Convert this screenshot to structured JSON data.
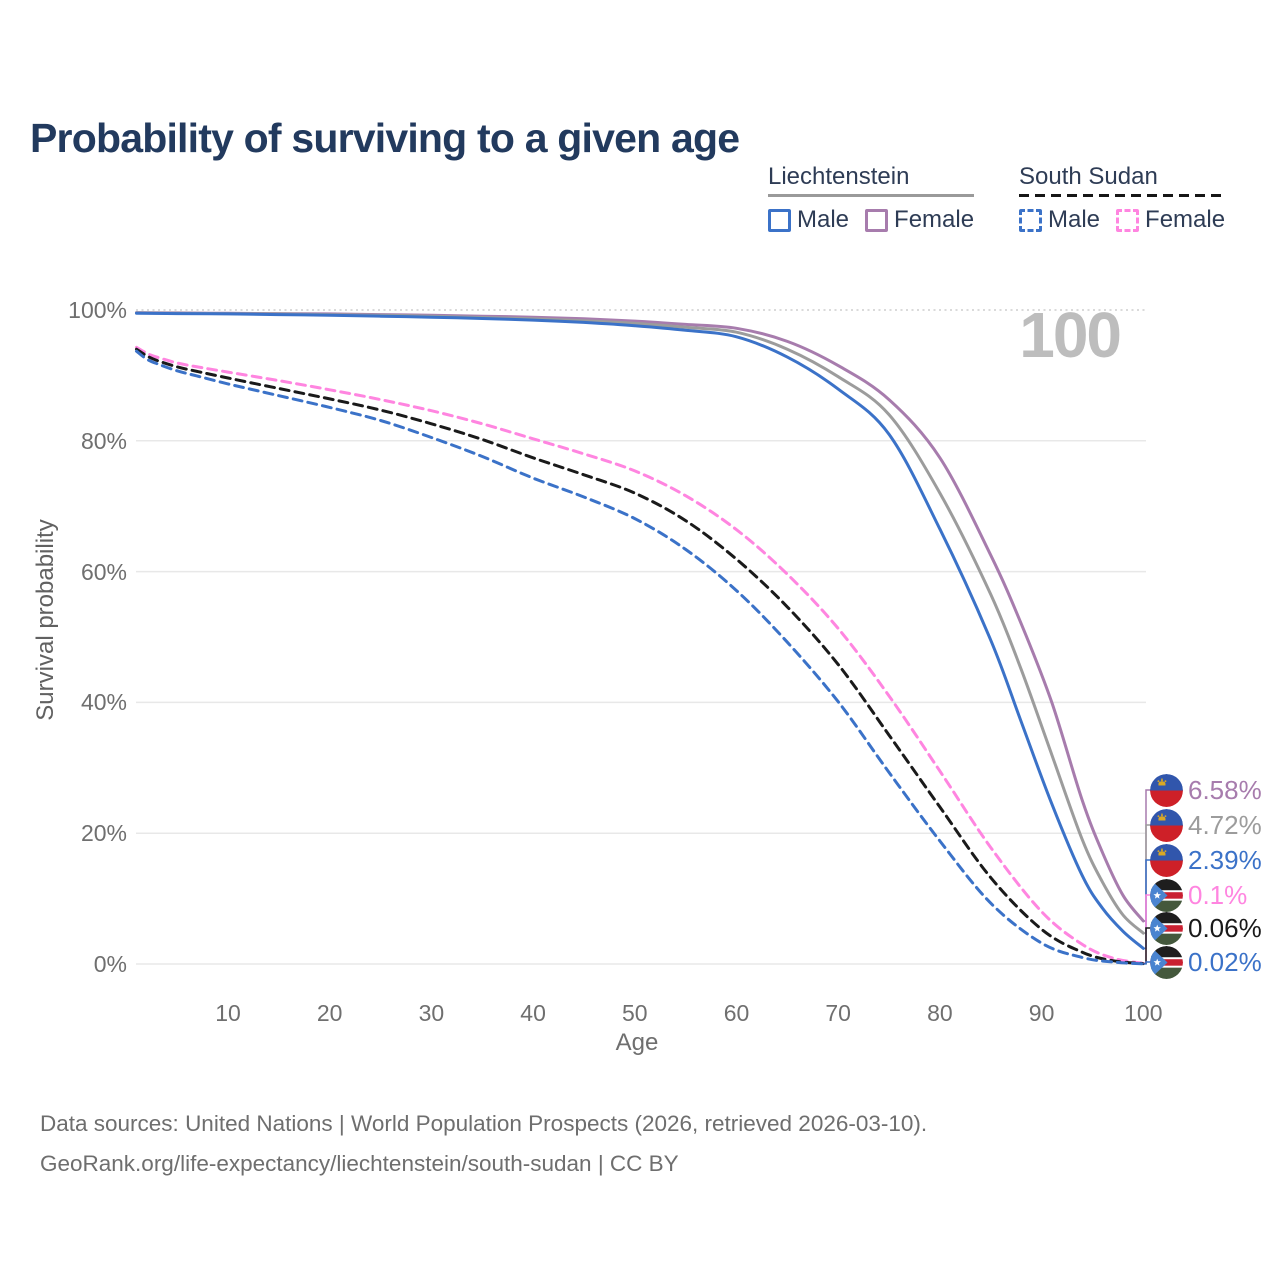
{
  "title": "Probability of surviving to a given age",
  "watermark": "100",
  "legend": {
    "groups": [
      {
        "country": "Liechtenstein",
        "line_style": "solid",
        "items": [
          {
            "label": "Male",
            "color": "#3B72C8"
          },
          {
            "label": "Female",
            "color": "#A77CAD"
          }
        ]
      },
      {
        "country": "South Sudan",
        "line_style": "dashed",
        "items": [
          {
            "label": "Male",
            "color": "#3B72C8"
          },
          {
            "label": "Female",
            "color": "#FF85E0"
          }
        ]
      }
    ]
  },
  "chart_data": {
    "type": "line",
    "title": "Probability of surviving to a given age",
    "xlabel": "Age",
    "ylabel": "Survival probability",
    "xlim": [
      1,
      100
    ],
    "ylim": [
      0,
      100
    ],
    "grid": true,
    "legend_position": "top-right",
    "xticks": [
      {
        "value": 10,
        "label": "10"
      },
      {
        "value": 20,
        "label": "20"
      },
      {
        "value": 30,
        "label": "30"
      },
      {
        "value": 40,
        "label": "40"
      },
      {
        "value": 50,
        "label": "50"
      },
      {
        "value": 60,
        "label": "60"
      },
      {
        "value": 70,
        "label": "70"
      },
      {
        "value": 80,
        "label": "80"
      },
      {
        "value": 90,
        "label": "90"
      },
      {
        "value": 100,
        "label": "100"
      }
    ],
    "yticks": [
      {
        "value": 0,
        "label": "0%"
      },
      {
        "value": 20,
        "label": "20%"
      },
      {
        "value": 40,
        "label": "40%"
      },
      {
        "value": 60,
        "label": "60%"
      },
      {
        "value": 80,
        "label": "80%"
      },
      {
        "value": 100,
        "label": "100%"
      }
    ],
    "series": [
      {
        "id": "liechtenstein-female",
        "country": "Liechtenstein",
        "sex": "Female",
        "color": "#A77CAD",
        "dashed": false,
        "flag": "liechtenstein",
        "end_label": "6.58%",
        "points": [
          [
            1,
            99.6
          ],
          [
            5,
            99.55
          ],
          [
            10,
            99.5
          ],
          [
            15,
            99.45
          ],
          [
            20,
            99.4
          ],
          [
            25,
            99.3
          ],
          [
            30,
            99.2
          ],
          [
            35,
            99.05
          ],
          [
            40,
            98.9
          ],
          [
            45,
            98.65
          ],
          [
            50,
            98.3
          ],
          [
            55,
            97.8
          ],
          [
            60,
            97.2
          ],
          [
            65,
            95.2
          ],
          [
            70,
            91.5
          ],
          [
            75,
            86.3
          ],
          [
            80,
            77.4
          ],
          [
            85,
            62.5
          ],
          [
            88,
            52
          ],
          [
            91,
            40
          ],
          [
            94,
            25
          ],
          [
            96,
            17
          ],
          [
            98,
            10.5
          ],
          [
            100,
            6.58
          ]
        ]
      },
      {
        "id": "liechtenstein-both",
        "country": "Liechtenstein",
        "sex": "Both sexes",
        "color": "#9C9C9C",
        "dashed": false,
        "flag": "liechtenstein",
        "end_label": "4.72%",
        "points": [
          [
            1,
            99.55
          ],
          [
            5,
            99.5
          ],
          [
            10,
            99.45
          ],
          [
            15,
            99.4
          ],
          [
            20,
            99.3
          ],
          [
            25,
            99.2
          ],
          [
            30,
            99.05
          ],
          [
            35,
            98.85
          ],
          [
            40,
            98.65
          ],
          [
            45,
            98.35
          ],
          [
            50,
            97.95
          ],
          [
            55,
            97.35
          ],
          [
            60,
            96.6
          ],
          [
            65,
            94.0
          ],
          [
            70,
            89.8
          ],
          [
            75,
            84.0
          ],
          [
            80,
            72.0
          ],
          [
            85,
            56.5
          ],
          [
            88,
            45
          ],
          [
            91,
            32
          ],
          [
            94,
            19
          ],
          [
            96,
            12.5
          ],
          [
            98,
            7.5
          ],
          [
            100,
            4.72
          ]
        ]
      },
      {
        "id": "liechtenstein-male",
        "country": "Liechtenstein",
        "sex": "Male",
        "color": "#3B72C8",
        "dashed": false,
        "flag": "liechtenstein",
        "end_label": "2.39%",
        "points": [
          [
            1,
            99.5
          ],
          [
            5,
            99.45
          ],
          [
            10,
            99.4
          ],
          [
            15,
            99.3
          ],
          [
            20,
            99.2
          ],
          [
            25,
            99.05
          ],
          [
            30,
            98.9
          ],
          [
            35,
            98.7
          ],
          [
            40,
            98.45
          ],
          [
            45,
            98.1
          ],
          [
            50,
            97.6
          ],
          [
            55,
            96.9
          ],
          [
            60,
            95.9
          ],
          [
            65,
            92.8
          ],
          [
            70,
            87.9
          ],
          [
            75,
            81.0
          ],
          [
            80,
            66.5
          ],
          [
            85,
            49.5
          ],
          [
            88,
            37
          ],
          [
            91,
            24.5
          ],
          [
            94,
            13.5
          ],
          [
            96,
            8.5
          ],
          [
            98,
            5
          ],
          [
            100,
            2.39
          ]
        ]
      },
      {
        "id": "south-sudan-female",
        "country": "South Sudan",
        "sex": "Female",
        "color": "#FF85E0",
        "dashed": true,
        "flag": "south-sudan",
        "end_label": "0.1%",
        "points": [
          [
            1,
            94.3
          ],
          [
            2,
            93.4
          ],
          [
            3,
            92.8
          ],
          [
            5,
            91.9
          ],
          [
            7,
            91.3
          ],
          [
            10,
            90.5
          ],
          [
            15,
            89.2
          ],
          [
            20,
            87.8
          ],
          [
            25,
            86.3
          ],
          [
            30,
            84.6
          ],
          [
            35,
            82.6
          ],
          [
            40,
            80.3
          ],
          [
            45,
            78.0
          ],
          [
            50,
            75.4
          ],
          [
            55,
            71.6
          ],
          [
            60,
            66.4
          ],
          [
            65,
            59.6
          ],
          [
            70,
            51.3
          ],
          [
            75,
            41.0
          ],
          [
            80,
            29.5
          ],
          [
            85,
            17.8
          ],
          [
            90,
            8.0
          ],
          [
            94,
            3.0
          ],
          [
            97,
            0.9
          ],
          [
            100,
            0.1
          ]
        ]
      },
      {
        "id": "south-sudan-both",
        "country": "South Sudan",
        "sex": "Both sexes",
        "color": "#1A1A1A",
        "dashed": true,
        "flag": "south-sudan",
        "end_label": "0.06%",
        "points": [
          [
            1,
            94.0
          ],
          [
            2,
            93.0
          ],
          [
            3,
            92.3
          ],
          [
            5,
            91.3
          ],
          [
            7,
            90.6
          ],
          [
            10,
            89.6
          ],
          [
            15,
            88.0
          ],
          [
            20,
            86.4
          ],
          [
            25,
            84.7
          ],
          [
            30,
            82.6
          ],
          [
            35,
            80.2
          ],
          [
            40,
            77.4
          ],
          [
            45,
            74.8
          ],
          [
            50,
            72.0
          ],
          [
            55,
            67.8
          ],
          [
            60,
            61.9
          ],
          [
            65,
            54.6
          ],
          [
            70,
            45.8
          ],
          [
            75,
            35.0
          ],
          [
            80,
            24.0
          ],
          [
            85,
            13.2
          ],
          [
            90,
            5.3
          ],
          [
            94,
            1.8
          ],
          [
            97,
            0.5
          ],
          [
            100,
            0.06
          ]
        ]
      },
      {
        "id": "south-sudan-male",
        "country": "South Sudan",
        "sex": "Male",
        "color": "#3B72C8",
        "dashed": true,
        "flag": "south-sudan",
        "end_label": "0.02%",
        "points": [
          [
            1,
            93.7
          ],
          [
            2,
            92.5
          ],
          [
            3,
            91.8
          ],
          [
            5,
            90.7
          ],
          [
            7,
            89.9
          ],
          [
            10,
            88.7
          ],
          [
            15,
            86.9
          ],
          [
            20,
            85.1
          ],
          [
            25,
            83.1
          ],
          [
            30,
            80.5
          ],
          [
            35,
            77.6
          ],
          [
            40,
            74.3
          ],
          [
            45,
            71.4
          ],
          [
            50,
            68.1
          ],
          [
            55,
            63.4
          ],
          [
            60,
            57.1
          ],
          [
            65,
            49.2
          ],
          [
            70,
            40.1
          ],
          [
            75,
            29.3
          ],
          [
            80,
            18.8
          ],
          [
            85,
            9.3
          ],
          [
            90,
            3.2
          ],
          [
            94,
            1.0
          ],
          [
            97,
            0.3
          ],
          [
            100,
            0.02
          ]
        ]
      }
    ]
  },
  "flags": {
    "liechtenstein": {
      "blue": "#3156AC",
      "red": "#CE2028",
      "gold": "#D9A826"
    },
    "south_sudan": {
      "black": "#1E1E1E",
      "white": "#FFFFFF",
      "red": "#C92031",
      "green": "#44583C",
      "blue": "#4A84D0"
    }
  },
  "footer": {
    "line1": "Data sources: United Nations | World Population Prospects (2026, retrieved 2026-03-10).",
    "line2": "GeoRank.org/life-expectancy/liechtenstein/south-sudan | CC BY"
  }
}
